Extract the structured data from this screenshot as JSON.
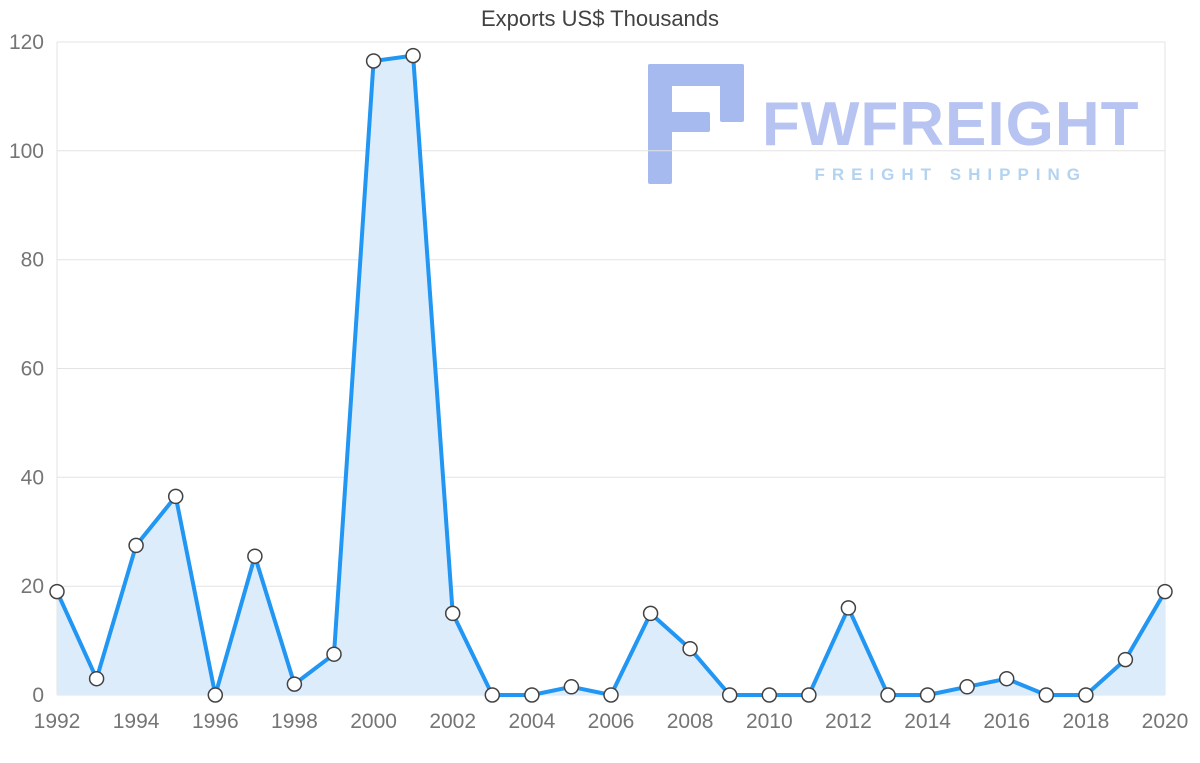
{
  "chart_data": {
    "type": "line",
    "title": "Exports US$ Thousands",
    "x": [
      1992,
      1993,
      1994,
      1995,
      1996,
      1997,
      1998,
      1999,
      2000,
      2001,
      2002,
      2003,
      2004,
      2005,
      2006,
      2007,
      2008,
      2009,
      2010,
      2011,
      2012,
      2013,
      2014,
      2015,
      2016,
      2017,
      2018,
      2019,
      2020
    ],
    "series": [
      {
        "name": "Exports US$ Thousands",
        "values": [
          19,
          3,
          27.5,
          36.5,
          0,
          25.5,
          2,
          7.5,
          116.5,
          117.5,
          15,
          0,
          0,
          1.5,
          0,
          15,
          8.5,
          0,
          0,
          0,
          16,
          0,
          0,
          1.5,
          3,
          0,
          0,
          6.5,
          19
        ]
      }
    ],
    "xlabel": "",
    "ylabel": "",
    "xlim": [
      1992,
      2020
    ],
    "ylim": [
      0,
      120
    ],
    "yticks": [
      0,
      20,
      40,
      60,
      80,
      100,
      120
    ],
    "xticks": [
      1992,
      1994,
      1996,
      1998,
      2000,
      2002,
      2004,
      2006,
      2008,
      2010,
      2012,
      2014,
      2016,
      2018,
      2020
    ],
    "grid": "horizontal",
    "legend": "none",
    "style": {
      "line_color": "#2196f3",
      "area_fill": "#ddecfb",
      "marker_fill": "#ffffff",
      "marker_stroke": "#424242",
      "grid_color": "#e3e3e3",
      "axis_label_color": "#757575",
      "title_color": "#424242"
    }
  },
  "watermark": {
    "brand": "FWFREIGHT",
    "tagline": "FREIGHT SHIPPING",
    "brand_color": "#b7c4f2",
    "tagline_color": "#b3d3f1",
    "icon_color": "#a6baf0"
  }
}
